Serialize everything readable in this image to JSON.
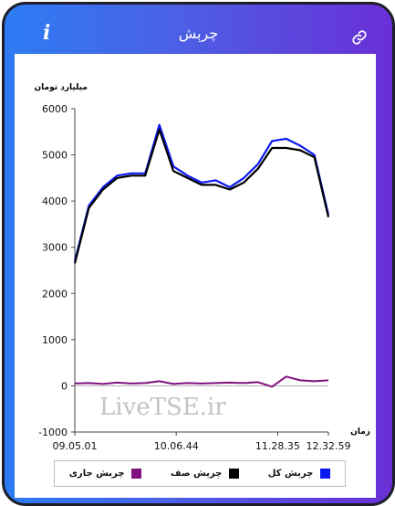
{
  "header": {
    "title": "چرېش",
    "info_glyph": "i",
    "info_icon": "info-icon",
    "link_icon": "link-icon"
  },
  "watermark": "LiveTSE.ir",
  "colors": {
    "series_total": "#0a18f0",
    "series_queue": "#000000",
    "series_current": "#80107e"
  },
  "chart_data": {
    "type": "line",
    "ylabel": "میلیارد تومان",
    "xlabel": "زمان",
    "ylim": [
      -1000,
      6000
    ],
    "yticks": [
      -1000,
      0,
      1000,
      2000,
      3000,
      4000,
      5000,
      6000
    ],
    "xticks": [
      "09.05.01",
      "10.06.44",
      "11.28.35",
      "12.32.59"
    ],
    "grid": false,
    "legend_position": "bottom",
    "series": [
      {
        "name": "چرېش کل",
        "x": [
          "09.05.01",
          "09.10",
          "09.20",
          "09.30",
          "09.40",
          "09.50",
          "10.00",
          "10.06.44",
          "10.20",
          "10.40",
          "11.00",
          "11.20",
          "11.28.35",
          "11.45",
          "12.00",
          "12.10",
          "12.20",
          "12.30",
          "12.32.59"
        ],
        "values": [
          2700,
          3900,
          4300,
          4550,
          4600,
          4600,
          5650,
          4750,
          4550,
          4400,
          4450,
          4300,
          4500,
          4800,
          5300,
          5350,
          5200,
          5000,
          3700
        ]
      },
      {
        "name": "چرېش صف",
        "x": [
          "09.05.01",
          "09.10",
          "09.20",
          "09.30",
          "09.40",
          "09.50",
          "10.00",
          "10.06.44",
          "10.20",
          "10.40",
          "11.00",
          "11.20",
          "11.28.35",
          "11.45",
          "12.00",
          "12.10",
          "12.20",
          "12.30",
          "12.32.59"
        ],
        "values": [
          2650,
          3850,
          4250,
          4500,
          4550,
          4550,
          5550,
          4650,
          4500,
          4350,
          4350,
          4250,
          4400,
          4700,
          5150,
          5150,
          5100,
          4950,
          3650
        ]
      },
      {
        "name": "چرېش جاری",
        "x": [
          "09.05.01",
          "09.10",
          "09.20",
          "09.30",
          "09.40",
          "09.50",
          "10.00",
          "10.06.44",
          "10.20",
          "10.40",
          "11.00",
          "11.20",
          "11.28.35",
          "11.45",
          "12.00",
          "12.10",
          "12.20",
          "12.30",
          "12.32.59"
        ],
        "values": [
          50,
          60,
          40,
          70,
          50,
          60,
          100,
          40,
          60,
          50,
          60,
          70,
          60,
          80,
          -20,
          200,
          120,
          100,
          120
        ]
      }
    ]
  }
}
